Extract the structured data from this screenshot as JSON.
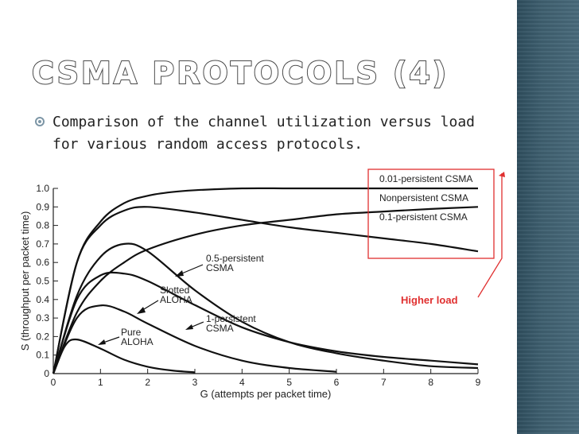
{
  "slide": {
    "title": "CSMA PROTOCOLS (4)",
    "bullet": "Comparison of the channel utilization versus load for various random access protocols."
  },
  "chart_data": {
    "type": "line",
    "xlabel": "G (attempts per packet time)",
    "ylabel": "S (throughput per packet time)",
    "xlim": [
      0,
      9
    ],
    "ylim": [
      0,
      1.0
    ],
    "x_ticks": [
      "0",
      "1",
      "2",
      "3",
      "4",
      "5",
      "6",
      "7",
      "8",
      "9"
    ],
    "y_ticks": [
      "0",
      "0.1",
      "0.2",
      "0.3",
      "0.4",
      "0.5",
      "0.6",
      "0.7",
      "0.8",
      "0.9",
      "1.0"
    ],
    "grid": false,
    "series": [
      {
        "name": "0.01-persistent CSMA",
        "x": [
          0,
          0.5,
          1,
          1.5,
          2,
          2.5,
          3,
          4,
          5,
          6,
          7,
          8,
          9
        ],
        "y": [
          0,
          0.6,
          0.82,
          0.92,
          0.96,
          0.98,
          0.99,
          1.0,
          1.0,
          1.0,
          1.0,
          1.0,
          1.0
        ]
      },
      {
        "name": "Nonpersistent CSMA",
        "x": [
          0,
          0.5,
          1,
          1.5,
          2,
          3,
          4,
          5,
          6,
          7,
          8,
          9
        ],
        "y": [
          0,
          0.33,
          0.5,
          0.6,
          0.67,
          0.75,
          0.8,
          0.83,
          0.86,
          0.875,
          0.889,
          0.9
        ]
      },
      {
        "name": "0.1-persistent CSMA",
        "x": [
          0,
          0.5,
          1,
          1.5,
          2,
          3,
          4,
          5,
          6,
          7,
          8,
          9
        ],
        "y": [
          0,
          0.6,
          0.8,
          0.88,
          0.9,
          0.87,
          0.83,
          0.79,
          0.76,
          0.73,
          0.7,
          0.66
        ]
      },
      {
        "name": "0.5-persistent CSMA",
        "x": [
          0,
          0.5,
          1,
          1.5,
          2,
          3,
          4,
          5,
          6,
          7,
          8,
          9
        ],
        "y": [
          0,
          0.42,
          0.63,
          0.7,
          0.66,
          0.45,
          0.28,
          0.17,
          0.11,
          0.07,
          0.04,
          0.03
        ]
      },
      {
        "name": "1-persistent CSMA",
        "x": [
          0,
          0.5,
          1,
          1.5,
          2,
          3,
          4,
          5,
          6,
          7,
          8,
          9
        ],
        "y": [
          0,
          0.4,
          0.53,
          0.54,
          0.5,
          0.37,
          0.25,
          0.17,
          0.12,
          0.09,
          0.07,
          0.05
        ]
      },
      {
        "name": "Slotted ALOHA",
        "x": [
          0,
          0.5,
          1,
          1.5,
          2,
          3,
          4,
          5,
          6
        ],
        "y": [
          0,
          0.3,
          0.368,
          0.335,
          0.27,
          0.15,
          0.07,
          0.03,
          0.01
        ]
      },
      {
        "name": "Pure ALOHA",
        "x": [
          0,
          0.25,
          0.5,
          1,
          1.5,
          2,
          2.5,
          3
        ],
        "y": [
          0,
          0.15,
          0.184,
          0.135,
          0.075,
          0.037,
          0.017,
          0.007
        ]
      }
    ],
    "annotations": {
      "legend_labels": [
        "0.01-persistent CSMA",
        "Nonpersistent CSMA",
        "0.1-persistent CSMA"
      ],
      "label_05": [
        "0.5-persistent",
        "CSMA"
      ],
      "label_slotted": [
        "Slotted",
        "ALOHA"
      ],
      "label_1": [
        "1-persistent",
        "CSMA"
      ],
      "label_pure": [
        "Pure",
        "ALOHA"
      ],
      "higher_load": "Higher load",
      "highlight_color": "#e03030"
    }
  }
}
